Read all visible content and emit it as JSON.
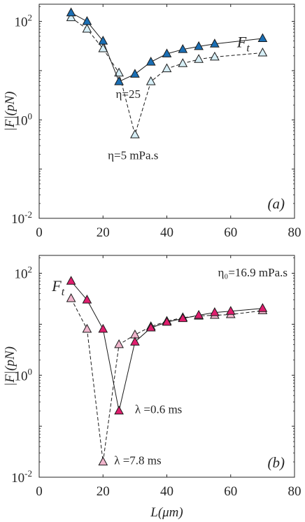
{
  "chart_data": [
    {
      "type": "line",
      "panel_label": "(a)",
      "ylabel": "|F|(pN)",
      "xlabel": "",
      "xlim": [
        0,
        80
      ],
      "ylim": [
        0.01,
        200
      ],
      "yscale": "log",
      "xticks": [
        0,
        20,
        40,
        60,
        80
      ],
      "xtick_labels": [
        "0",
        "20",
        "40",
        "60",
        "80"
      ],
      "yticks": [
        0.01,
        1,
        100
      ],
      "ytick_labels": [
        {
          "base": "10",
          "exp": "-2"
        },
        {
          "base": "10",
          "exp": "0"
        },
        {
          "base": "10",
          "exp": "2"
        }
      ],
      "grid": false,
      "series": [
        {
          "x": [
            10,
            15,
            20,
            25,
            30,
            35,
            40,
            45,
            50,
            55,
            70
          ],
          "y": [
            150,
            100,
            40,
            6,
            8.5,
            15,
            22,
            27,
            31,
            35,
            45
          ],
          "color": "#1a6fb5",
          "line": "solid"
        },
        {
          "x": [
            10,
            15,
            20,
            25,
            30,
            35,
            40,
            45,
            50,
            55,
            70
          ],
          "y": [
            120,
            70,
            28,
            9,
            0.5,
            6,
            11,
            14,
            17,
            19,
            23
          ],
          "color": "#d6eef6",
          "line": "dashed"
        }
      ],
      "annotations": [
        {
          "text": "F",
          "sub": "t",
          "x": 62,
          "y": 30
        },
        {
          "text": "η=25",
          "x": 24,
          "y": 2.8
        },
        {
          "text": "η=5 mPa.s",
          "x": 21.5,
          "y": 0.16
        }
      ]
    },
    {
      "type": "line",
      "panel_label": "(b)",
      "ylabel": "|F|(pN)",
      "xlabel": "L(μm)",
      "xlim": [
        0,
        80
      ],
      "ylim": [
        0.01,
        200
      ],
      "yscale": "log",
      "xticks": [
        0,
        20,
        40,
        60,
        80
      ],
      "xtick_labels": [
        "0",
        "20",
        "40",
        "60",
        "80"
      ],
      "yticks": [
        0.01,
        1,
        100
      ],
      "ytick_labels": [
        {
          "base": "10",
          "exp": "-2"
        },
        {
          "base": "10",
          "exp": "0"
        },
        {
          "base": "10",
          "exp": "2"
        }
      ],
      "grid": false,
      "header": "η₀=16.9 mPa.s",
      "series": [
        {
          "x": [
            10,
            15,
            20,
            25,
            30,
            35,
            40,
            45,
            50,
            55,
            60,
            70
          ],
          "y": [
            70,
            30,
            8,
            0.2,
            4.5,
            8.5,
            11,
            13,
            15,
            17,
            18,
            20.5
          ],
          "color": "#e01e6e",
          "line": "solid"
        },
        {
          "x": [
            10,
            15,
            20,
            25,
            30,
            35,
            40,
            45,
            50,
            55,
            60,
            70
          ],
          "y": [
            32,
            8,
            0.02,
            4,
            6.2,
            9,
            11.5,
            13.5,
            14.5,
            15,
            15.5,
            18.5
          ],
          "color": "#f0b5cc",
          "line": "dashed"
        }
      ],
      "annotations": [
        {
          "text": "F",
          "sub": "t",
          "x": 4,
          "y": 45
        },
        {
          "text": "λ =0.6  ms",
          "x": 30,
          "y": 0.18
        },
        {
          "text": "λ =7.8  ms",
          "x": 23.5,
          "y": 0.018
        }
      ]
    }
  ]
}
